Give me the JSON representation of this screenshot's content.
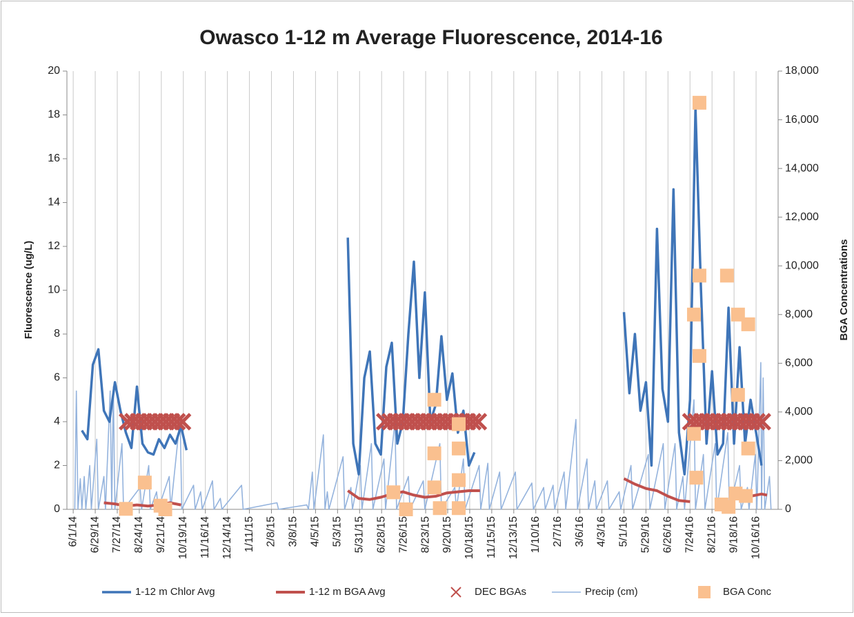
{
  "chart_data": {
    "type": "line",
    "title": "Owasco 1-12 m Average Fluorescence, 2014-16",
    "y_label": "Fluorescence (ug/L)",
    "y2_label": "BGA Concentrations",
    "xlim": [
      "5/24/14",
      "11/13/16"
    ],
    "xticks": [
      "6/1/14",
      "6/29/14",
      "7/27/14",
      "8/24/14",
      "9/21/14",
      "10/19/14",
      "11/16/14",
      "12/14/14",
      "1/11/15",
      "2/8/15",
      "3/8/15",
      "4/5/15",
      "5/3/15",
      "5/31/15",
      "6/28/15",
      "7/26/15",
      "8/23/15",
      "9/20/15",
      "10/18/15",
      "11/15/15",
      "12/13/15",
      "1/10/16",
      "2/7/16",
      "3/6/16",
      "4/3/16",
      "5/1/16",
      "5/29/16",
      "6/26/16",
      "7/24/16",
      "8/21/16",
      "9/18/16",
      "10/16/16"
    ],
    "ylim": [
      0,
      20
    ],
    "yticks": [
      0,
      2,
      4,
      6,
      8,
      10,
      12,
      14,
      16,
      18,
      20
    ],
    "y2lim": [
      0,
      18000
    ],
    "y2ticks": [
      0,
      {
        "value": 2000,
        "label": "2,000"
      },
      {
        "value": 4000,
        "label": "4,000"
      },
      {
        "value": 6000,
        "label": "6,000"
      },
      {
        "value": 8000,
        "label": "8,000"
      },
      {
        "value": 10000,
        "label": "10,000"
      },
      {
        "value": 12000,
        "label": "12,000"
      },
      {
        "value": 14000,
        "label": "14,000"
      },
      {
        "value": 16000,
        "label": "16,000"
      },
      {
        "value": 18000,
        "label": "18,000"
      }
    ],
    "grid": "x",
    "legend": "bottom",
    "series": [
      {
        "name": "1-12 m Chlor Avg",
        "type": "line",
        "color": "#3f75b8",
        "axis": "y",
        "x": [
          "6/12/14",
          "6/19/14",
          "6/26/14",
          "7/3/14",
          "7/10/14",
          "7/17/14",
          "7/24/14",
          "7/31/14",
          "8/7/14",
          "8/14/14",
          "8/21/14",
          "8/28/14",
          "9/4/14",
          "9/11/14",
          "9/18/14",
          "9/25/14",
          "10/2/14",
          "10/9/14",
          "10/16/14",
          "10/23/14",
          "11/20/14",
          "5/16/15",
          "5/23/15",
          "5/30/15",
          "6/6/15",
          "6/13/15",
          "6/20/15",
          "6/27/15",
          "7/4/15",
          "7/11/15",
          "7/18/15",
          "7/25/15",
          "8/1/15",
          "8/8/15",
          "8/15/15",
          "8/22/15",
          "8/29/15",
          "9/5/15",
          "9/12/15",
          "9/19/15",
          "9/26/15",
          "10/3/15",
          "10/10/15",
          "10/17/15",
          "10/24/15",
          "1/1/16",
          "5/1/16",
          "5/8/16",
          "5/15/16",
          "5/22/16",
          "5/29/16",
          "6/5/16",
          "6/12/16",
          "6/19/16",
          "6/26/16",
          "7/3/16",
          "7/10/16",
          "7/17/16",
          "7/24/16",
          "7/31/16",
          "8/7/16",
          "8/14/16",
          "8/21/16",
          "8/28/16",
          "9/4/16",
          "9/11/16",
          "9/18/16",
          "9/25/16",
          "10/2/16",
          "10/9/16",
          "10/16/16",
          "10/23/16"
        ],
        "values": [
          3.6,
          3.2,
          6.6,
          7.3,
          4.5,
          4,
          5.8,
          4.5,
          3.5,
          2.8,
          5.6,
          3,
          2.6,
          2.5,
          3.2,
          2.8,
          3.4,
          3,
          3.8,
          2.7,
          null,
          12.4,
          3,
          1.6,
          6,
          7.2,
          3,
          2.5,
          6.5,
          7.6,
          3,
          4,
          8,
          11.3,
          6,
          9.9,
          4,
          4.8,
          7.9,
          5,
          6.2,
          3.5,
          4.5,
          2,
          2.6,
          null,
          9,
          5.3,
          8,
          4.5,
          5.8,
          2,
          12.8,
          5.5,
          4,
          14.6,
          3.5,
          1.6,
          5,
          18.3,
          10,
          3,
          6.3,
          2.5,
          3,
          9.2,
          3,
          7.4,
          3,
          5,
          3.5,
          2
        ]
      },
      {
        "name": "1-12 m BGA Avg",
        "type": "line",
        "color": "#c0504d",
        "axis": "y",
        "x": [
          "7/10/14",
          "7/24/14",
          "8/7/14",
          "8/21/14",
          "9/4/14",
          "9/18/14",
          "10/2/14",
          "10/16/14",
          "12/1/14",
          "5/16/15",
          "5/30/15",
          "6/13/15",
          "6/27/15",
          "7/11/15",
          "7/25/15",
          "8/8/15",
          "8/22/15",
          "9/5/15",
          "9/19/15",
          "10/3/15",
          "10/17/15",
          "10/31/15",
          "1/1/16",
          "5/1/16",
          "5/15/16",
          "5/29/16",
          "6/12/16",
          "6/26/16",
          "7/10/16",
          "7/24/16",
          "8/1/16",
          "9/25/16",
          "10/9/16",
          "10/23/16",
          "10/30/16"
        ],
        "values": [
          0.3,
          0.25,
          0.15,
          0.2,
          0.15,
          0.2,
          0.3,
          0.2,
          null,
          0.85,
          0.5,
          0.45,
          0.55,
          0.7,
          0.8,
          0.65,
          0.55,
          0.6,
          0.75,
          0.8,
          0.85,
          0.85,
          null,
          1.4,
          1.15,
          0.95,
          0.85,
          0.6,
          0.4,
          0.35,
          null,
          0.5,
          0.6,
          0.7,
          0.65
        ]
      },
      {
        "name": "DEC BGAs",
        "type": "scatter",
        "marker": "x",
        "color": "#c0504d",
        "axis": "y",
        "x": [
          "8/9/14",
          "8/16/14",
          "8/23/14",
          "8/30/14",
          "9/6/14",
          "9/13/14",
          "9/20/14",
          "9/27/14",
          "10/4/14",
          "10/11/14",
          "10/18/14",
          "7/2/15",
          "7/9/15",
          "7/16/15",
          "7/23/15",
          "7/30/15",
          "8/6/15",
          "8/13/15",
          "8/20/15",
          "8/27/15",
          "9/3/15",
          "9/10/15",
          "9/17/15",
          "9/24/15",
          "10/1/15",
          "10/8/15",
          "10/15/15",
          "10/22/15",
          "10/29/15",
          "7/25/16",
          "8/1/16",
          "8/8/16",
          "8/15/16",
          "8/22/16",
          "8/29/16",
          "9/5/16",
          "9/12/16",
          "9/19/16",
          "9/26/16",
          "10/3/16",
          "10/10/16",
          "10/17/16",
          "10/24/16"
        ],
        "values": [
          4,
          4,
          4,
          4,
          4,
          4,
          4,
          4,
          4,
          4,
          4,
          4,
          4,
          4,
          4,
          4,
          4,
          4,
          4,
          4,
          4,
          4,
          4,
          4,
          4,
          4,
          4,
          4,
          4,
          4,
          4,
          4,
          4,
          4,
          4,
          4,
          4,
          4,
          4,
          4,
          4,
          4,
          4
        ]
      },
      {
        "name": "Precip (cm)",
        "type": "line",
        "color": "#94b3dd",
        "axis": "y",
        "x": [
          "6/3/14",
          "6/5/14",
          "6/7/14",
          "6/10/14",
          "6/12/14",
          "6/15/14",
          "6/17/14",
          "6/22/14",
          "6/24/14",
          "7/1/14",
          "7/3/14",
          "7/10/14",
          "7/12/14",
          "7/18/14",
          "7/20/14",
          "7/22/14",
          "7/24/14",
          "8/2/14",
          "8/4/14",
          "8/25/14",
          "8/27/14",
          "9/5/14",
          "9/7/14",
          "9/15/14",
          "9/17/14",
          "10/1/14",
          "10/3/14",
          "10/15/14",
          "10/17/14",
          "11/1/14",
          "11/3/14",
          "11/10/14",
          "11/12/14",
          "11/25/14",
          "11/27/14",
          "12/5/14",
          "12/7/14",
          "1/1/15",
          "1/3/15",
          "2/15/15",
          "2/17/15",
          "3/25/15",
          "3/27/15",
          "4/1/15",
          "4/3/15",
          "4/15/15",
          "4/17/15",
          "4/20/15",
          "4/22/15",
          "5/10/15",
          "5/12/15",
          "5/20/15",
          "5/22/15",
          "6/1/15",
          "6/3/15",
          "6/15/15",
          "6/17/15",
          "7/1/15",
          "7/3/15",
          "7/15/15",
          "7/17/15",
          "8/1/15",
          "8/3/15",
          "8/20/15",
          "8/22/15",
          "9/10/15",
          "9/12/15",
          "9/29/15",
          "10/1/15",
          "10/10/15",
          "10/12/15",
          "10/30/15",
          "11/1/15",
          "11/10/15",
          "11/12/15",
          "11/25/15",
          "11/27/15",
          "12/15/15",
          "12/17/15",
          "1/5/16",
          "1/7/16",
          "1/20/16",
          "1/22/16",
          "2/1/16",
          "2/3/16",
          "2/15/16",
          "2/17/16",
          "3/1/16",
          "3/3/16",
          "3/15/16",
          "3/17/16",
          "3/25/16",
          "3/27/16",
          "4/10/16",
          "4/12/16",
          "4/25/16",
          "4/27/16",
          "5/10/16",
          "5/12/16",
          "6/1/16",
          "6/3/16",
          "6/20/16",
          "6/22/16",
          "7/5/16",
          "7/7/16",
          "7/15/16",
          "7/17/16",
          "7/29/16",
          "7/31/16",
          "8/10/16",
          "8/12/16",
          "8/25/16",
          "8/27/16",
          "9/10/16",
          "9/12/16",
          "9/25/16",
          "9/27/16",
          "10/5/16",
          "10/7/16",
          "10/15/16",
          "10/17/16",
          "10/22/16",
          "10/23/16",
          "10/25/16",
          "10/27/16",
          "11/2/16",
          "11/4/16"
        ],
        "values": [
          0,
          5.4,
          0,
          1.4,
          0,
          1.5,
          0,
          2,
          0,
          3.2,
          0,
          1.5,
          0,
          5.4,
          0,
          5.6,
          0,
          3,
          0,
          1,
          0,
          2,
          0,
          0.8,
          0,
          1.5,
          0,
          4.2,
          0,
          1.1,
          0,
          0.8,
          0,
          1.3,
          0,
          0.5,
          0,
          1.1,
          0,
          0.3,
          0,
          0.2,
          0,
          1.7,
          0,
          3.4,
          0,
          0.8,
          0,
          2.4,
          0,
          1,
          0,
          2,
          0,
          3,
          0,
          2.3,
          0,
          4,
          0,
          1.5,
          0,
          1.3,
          0,
          3,
          0,
          1,
          0,
          2.3,
          0,
          2,
          0,
          2.1,
          0,
          1.7,
          0,
          1.7,
          0,
          1.2,
          0,
          1,
          0,
          1.1,
          0,
          1.7,
          0,
          4.1,
          0,
          2.3,
          0,
          1.3,
          0,
          1.3,
          0,
          0.8,
          0,
          2,
          0,
          2.5,
          0,
          3,
          0,
          3,
          0,
          1.5,
          0,
          5,
          0,
          2.5,
          0,
          3,
          0,
          3.5,
          0,
          2,
          0,
          1,
          0,
          2.5,
          0,
          6.7,
          0,
          6,
          0,
          1.5,
          0
        ]
      },
      {
        "name": "BGA Conc",
        "type": "scatter",
        "marker": "square",
        "color": "#fac08f",
        "axis": "y2",
        "x": [
          "8/7/14",
          "8/31/14",
          "9/20/14",
          "9/26/14",
          "7/13/15",
          "7/29/15",
          "9/3/15",
          "9/3/15",
          "9/3/15",
          "9/10/15",
          "10/4/15",
          "10/4/15",
          "10/4/15",
          "10/4/15",
          "8/5/16",
          "8/5/16",
          "7/29/16",
          "8/5/16",
          "7/29/16",
          "8/1/16",
          "9/9/16",
          "9/23/16",
          "10/6/16",
          "9/23/16",
          "10/6/16",
          "9/2/16",
          "9/20/16",
          "10/3/16",
          "9/11/16"
        ],
        "values": [
          20,
          1100,
          150,
          0,
          700,
          0,
          2300,
          4500,
          900,
          50,
          3500,
          2500,
          1200,
          50,
          16700,
          9600,
          8000,
          6300,
          3100,
          1300,
          9600,
          8000,
          7600,
          4700,
          2500,
          200,
          650,
          550,
          100
        ]
      }
    ]
  }
}
